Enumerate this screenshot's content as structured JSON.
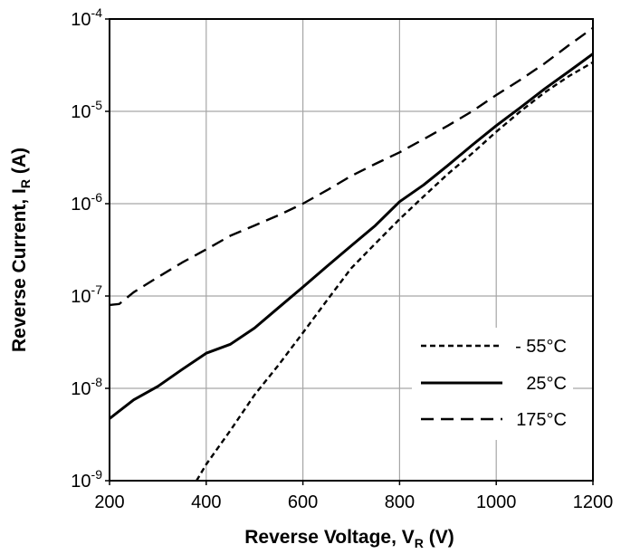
{
  "chart_data": {
    "type": "line",
    "title": "",
    "xlabel": "Reverse Voltage, V",
    "xlabel_sub": "R",
    "xlabel_unit": " (V)",
    "ylabel": "Reverse Current, I",
    "ylabel_sub": "R",
    "ylabel_unit": " (A)",
    "xlim": [
      200,
      1200
    ],
    "ylim": [
      1e-09,
      0.0001
    ],
    "y_scale": "log",
    "grid": true,
    "legend_position": "bottom-right",
    "x_ticks": [
      {
        "value": 200,
        "label": "200"
      },
      {
        "value": 400,
        "label": "400"
      },
      {
        "value": 600,
        "label": "600"
      },
      {
        "value": 800,
        "label": "800"
      },
      {
        "value": 1000,
        "label": "1000"
      },
      {
        "value": 1200,
        "label": "1200"
      }
    ],
    "y_ticks": [
      {
        "exp": -9,
        "base": "10",
        "sup": "-9"
      },
      {
        "exp": -8,
        "base": "10",
        "sup": "-8"
      },
      {
        "exp": -7,
        "base": "10",
        "sup": "-7"
      },
      {
        "exp": -6,
        "base": "10",
        "sup": "-6"
      },
      {
        "exp": -5,
        "base": "10",
        "sup": "-5"
      },
      {
        "exp": -4,
        "base": "10",
        "sup": "-4"
      }
    ],
    "series": [
      {
        "name": "- 55°C",
        "style": "short-dash",
        "color": "#000000",
        "x": [
          380,
          400,
          450,
          500,
          550,
          600,
          650,
          700,
          750,
          800,
          850,
          900,
          950,
          1000,
          1050,
          1100,
          1150,
          1200
        ],
        "y": [
          1e-09,
          1.5e-09,
          3.5e-09,
          8.5e-09,
          1.8e-08,
          4e-08,
          9e-08,
          2e-07,
          3.7e-07,
          6.8e-07,
          1.2e-06,
          2.1e-06,
          3.5e-06,
          6e-06,
          1e-05,
          1.6e-05,
          2.4e-05,
          3.4e-05
        ]
      },
      {
        "name": "25°C",
        "style": "solid",
        "color": "#000000",
        "x": [
          200,
          250,
          300,
          350,
          400,
          450,
          500,
          550,
          600,
          650,
          700,
          750,
          800,
          850,
          900,
          950,
          1000,
          1050,
          1100,
          1150,
          1200
        ],
        "y": [
          4.7e-09,
          7.5e-09,
          1.05e-08,
          1.6e-08,
          2.4e-08,
          3e-08,
          4.5e-08,
          7.5e-08,
          1.25e-07,
          2.1e-07,
          3.5e-07,
          5.8e-07,
          1.05e-06,
          1.6e-06,
          2.6e-06,
          4.3e-06,
          7e-06,
          1.1e-05,
          1.75e-05,
          2.7e-05,
          4.2e-05
        ]
      },
      {
        "name": "175°C",
        "style": "long-dash",
        "color": "#000000",
        "x": [
          200,
          220,
          250,
          300,
          350,
          400,
          450,
          500,
          550,
          600,
          650,
          700,
          750,
          800,
          850,
          900,
          950,
          1000,
          1050,
          1100,
          1150,
          1200
        ],
        "y": [
          8e-08,
          8.2e-08,
          1.1e-07,
          1.6e-07,
          2.3e-07,
          3.2e-07,
          4.5e-07,
          5.8e-07,
          7.5e-07,
          1e-06,
          1.4e-06,
          2e-06,
          2.7e-06,
          3.6e-06,
          5e-06,
          7e-06,
          1e-05,
          1.5e-05,
          2.2e-05,
          3.3e-05,
          5.2e-05,
          8e-05
        ]
      }
    ]
  }
}
